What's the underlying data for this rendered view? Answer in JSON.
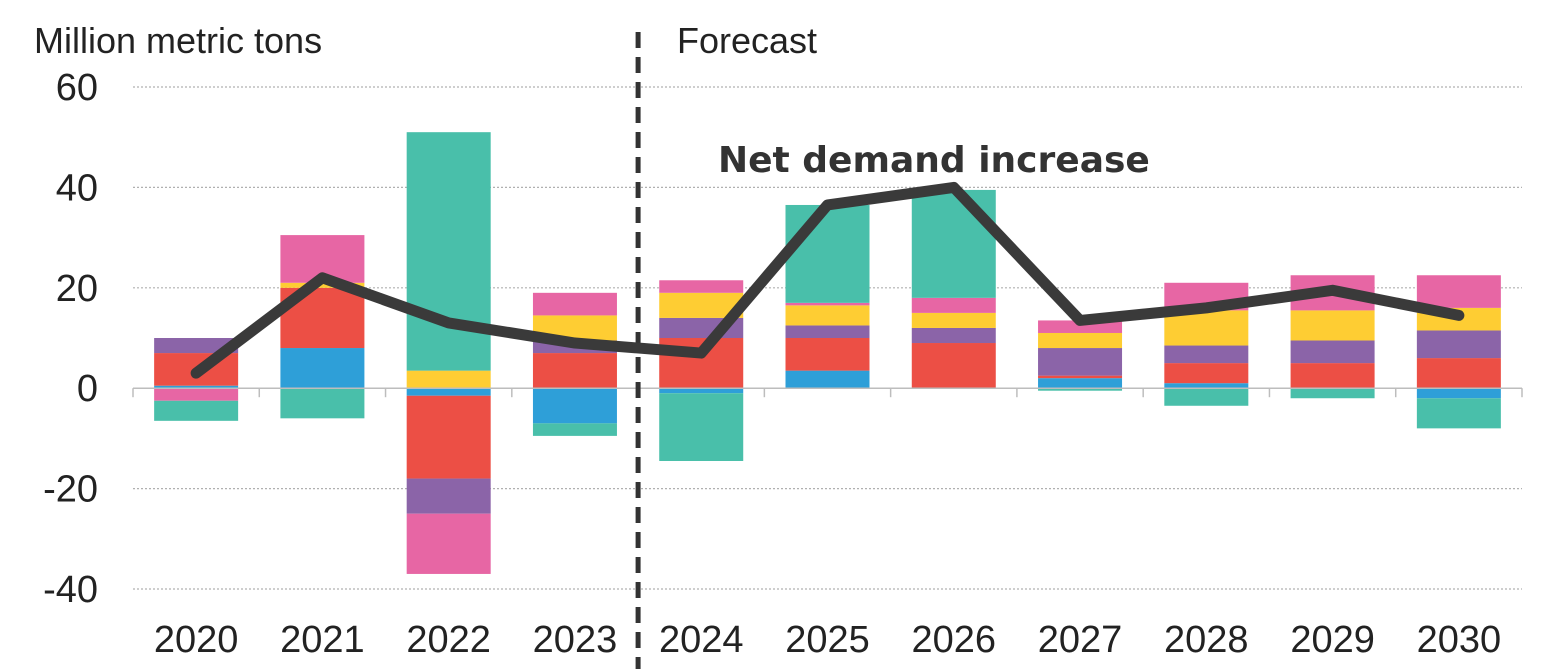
{
  "chart_data": {
    "type": "bar",
    "stacked": true,
    "ylabel": "Million metric tons",
    "ylim": [
      -40,
      60
    ],
    "yticks": [
      60,
      40,
      20,
      0,
      -20,
      -40
    ],
    "grid": true,
    "categories": [
      "2020",
      "2021",
      "2022",
      "2023",
      "2024",
      "2025",
      "2026",
      "2027",
      "2028",
      "2029",
      "2030"
    ],
    "forecast_start": "2024",
    "forecast_label": "Forecast",
    "annotation": "Net demand increase",
    "colors": [
      "#2e9fd8",
      "#ec4f45",
      "#8b64a8",
      "#fecd33",
      "#e766a4",
      "#49bfaa"
    ],
    "series": [
      {
        "color": "#2e9fd8",
        "values": [
          0.5,
          8,
          -1.5,
          -7,
          -1,
          3.5,
          0,
          2,
          1,
          0,
          -2
        ]
      },
      {
        "color": "#ec4f45",
        "values": [
          6.5,
          12,
          -16.5,
          7,
          10,
          6.5,
          9,
          0.5,
          4,
          5,
          6
        ]
      },
      {
        "color": "#8b64a8",
        "values": [
          3,
          0,
          -7,
          2.5,
          4,
          2.5,
          3,
          5.5,
          3.5,
          4.5,
          5.5
        ]
      },
      {
        "color": "#fecd33",
        "values": [
          0,
          1,
          3.5,
          5,
          5,
          4,
          3,
          3,
          7,
          6,
          4.5
        ]
      },
      {
        "color": "#e766a4",
        "values": [
          -2.5,
          9.5,
          -12,
          4.5,
          2.5,
          0.5,
          3,
          2.5,
          5.5,
          7,
          6.5
        ]
      },
      {
        "color": "#49bfaa",
        "values": [
          -4,
          -6,
          47.5,
          -2.5,
          -13.5,
          19.5,
          21.5,
          -0.5,
          -3.5,
          -2,
          -6
        ]
      }
    ],
    "net_line": {
      "color": "#3a3a3a",
      "values": [
        3,
        22,
        13,
        9,
        7,
        36.5,
        40,
        13.5,
        16,
        19.5,
        14.5
      ]
    }
  }
}
